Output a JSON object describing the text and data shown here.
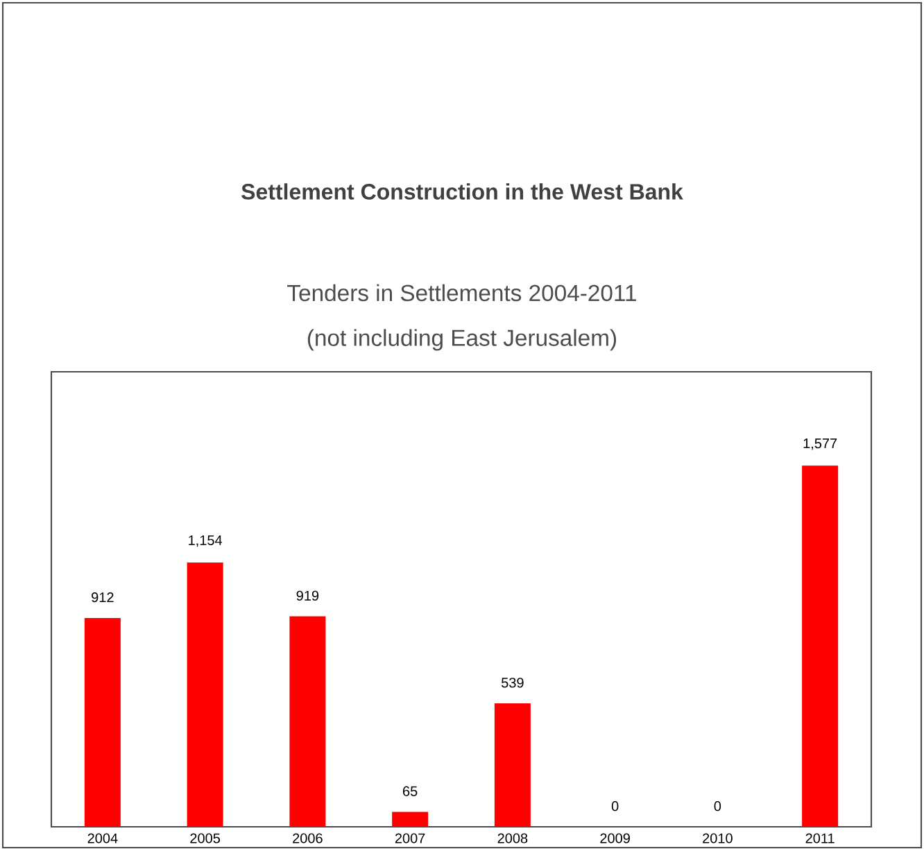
{
  "chart_data": {
    "type": "bar",
    "title": "Settlement Construction in the West Bank",
    "subtitle": "Tenders in Settlements 2004-2011",
    "annotations": [
      "(not including East Jerusalem)"
    ],
    "categories": [
      "2004",
      "2005",
      "2006",
      "2007",
      "2008",
      "2009",
      "2010",
      "2011"
    ],
    "values": [
      912,
      1154,
      919,
      65,
      539,
      0,
      0,
      1577
    ],
    "value_labels": [
      "912",
      "1,154",
      "919",
      "65",
      "539",
      "0",
      "0",
      "1,577"
    ],
    "color": "#ff0000"
  }
}
